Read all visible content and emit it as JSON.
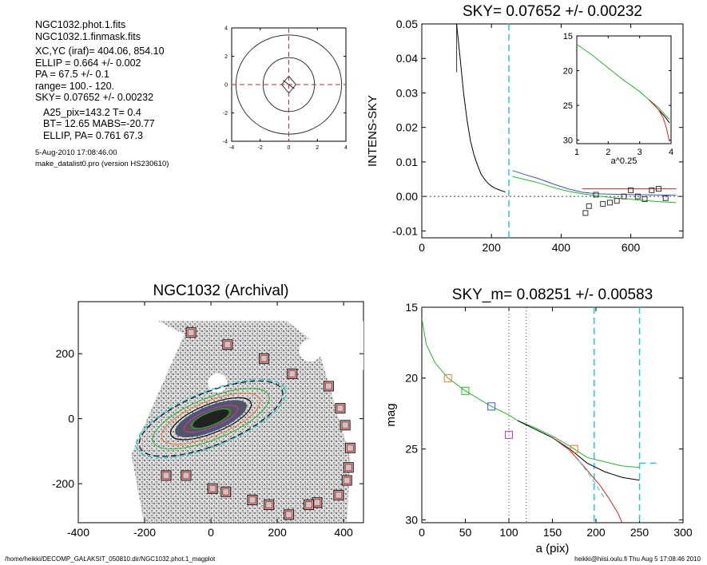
{
  "info": {
    "lines_a": [
      "NGC1032.phot.1.fits",
      "NGC1032.1.finmask.fits"
    ],
    "lines_b": [
      "XC,YC (iraf)=   404.06, 854.10",
      "ELLIP = 0.664 +/- 0.002",
      "PA    =  67.5 +/-   0.1",
      "range=  100.-  120.",
      "SKY= 0.07652 +/- 0.00232"
    ],
    "lines_c": [
      "A25_pix=143.2   T= 0.4",
      "BT=  12.65   MABS=-20.77",
      "ELLIP, PA= 0.761   67.3"
    ],
    "lines_d": [
      "5-Aug-2010 17:08:46.00",
      "make_datalist0.pro (version HS230610)"
    ]
  },
  "footer": {
    "left": "/home/heikki/DECOMP_GALAKSIT_050810.dir/NGC1032.phot.1_magplot",
    "right": "heikki@hiisi.oulu.fi  Thu Aug  5 17:08:46 2010"
  },
  "colors": {
    "cyan": "#22ccdd",
    "red": "#dd2222",
    "green": "#22bb22",
    "blue": "#3355dd",
    "magenta": "#cc33cc",
    "orange": "#ee7733"
  },
  "chart_data": [
    {
      "id": "contour",
      "type": "contour",
      "xlim": [
        -4,
        4
      ],
      "ylim": [
        -4,
        4
      ],
      "xticks": [
        "-4",
        "-2",
        "0",
        "2",
        "4"
      ],
      "yticks": [
        "-4",
        "-2",
        "0",
        "2",
        "4"
      ]
    },
    {
      "id": "sky_profile",
      "type": "line",
      "title": "SKY= 0.07652 +/- 0.00232",
      "ylabel": "INTENS-SKY",
      "xlim": [
        0,
        750
      ],
      "ylim": [
        -0.012,
        0.05
      ],
      "xticks": [
        "0",
        "200",
        "400",
        "600"
      ],
      "yticks": [
        "-0.01",
        "0.00",
        "0.01",
        "0.02",
        "0.03",
        "0.04",
        "0.05"
      ],
      "series": [
        {
          "color": "black",
          "x": [
            100,
            110,
            120,
            130,
            140,
            150,
            160,
            170,
            180,
            190,
            200,
            210,
            220,
            230,
            240
          ],
          "y": [
            0.05,
            0.04,
            0.03,
            0.022,
            0.016,
            0.012,
            0.009,
            0.0065,
            0.005,
            0.0038,
            0.003,
            0.0024,
            0.002,
            0.0016,
            0.0013
          ]
        },
        {
          "color": "blue",
          "x": [
            260,
            300,
            340,
            380,
            420,
            460,
            500,
            560,
            620,
            680,
            730
          ],
          "y": [
            0.0075,
            0.0062,
            0.005,
            0.0035,
            0.0022,
            0.0012,
            0.0008,
            0.0006,
            0.0005,
            0.0004,
            0.0004
          ]
        },
        {
          "color": "green",
          "x": [
            260,
            300,
            340,
            380,
            420,
            460,
            500,
            560,
            620,
            680,
            730
          ],
          "y": [
            0.0058,
            0.0048,
            0.0038,
            0.0025,
            0.0015,
            0.0008,
            0.0002,
            -0.0005,
            -0.001,
            -0.0015,
            -0.0018
          ]
        },
        {
          "color": "red",
          "x": [
            460,
            520,
            600,
            680,
            730
          ],
          "y": [
            0.0022,
            0.0022,
            0.0022,
            0.0022,
            0.0022
          ]
        }
      ],
      "squares": {
        "x": [
          470,
          480,
          500,
          520,
          540,
          560,
          580,
          600,
          620,
          640,
          660,
          680,
          700
        ],
        "y": [
          -0.0048,
          -0.0028,
          0.0005,
          -0.0022,
          -0.0018,
          -0.0013,
          0.0,
          0.0018,
          0.0,
          -0.0008,
          0.0018,
          0.0022,
          -0.0005
        ]
      },
      "vline_x": 250
    },
    {
      "id": "inset",
      "type": "line",
      "xlabel": "a^0.25",
      "xlim": [
        1,
        4
      ],
      "ylim": [
        15,
        30.5
      ],
      "xticks": [
        "1",
        "2",
        "3",
        "4"
      ],
      "yticks": [
        "15",
        "20",
        "25",
        "30"
      ],
      "series": [
        {
          "color": "green",
          "x": [
            1.0,
            1.5,
            2.0,
            2.5,
            3.0,
            3.3,
            3.6,
            3.8,
            3.95
          ],
          "y": [
            16.2,
            17.8,
            19.6,
            21.4,
            23.0,
            24.2,
            25.3,
            26.3,
            27.0
          ]
        },
        {
          "color": "black",
          "x": [
            3.3,
            3.6,
            3.8,
            3.95
          ],
          "y": [
            24.2,
            25.6,
            26.6,
            27.5
          ]
        },
        {
          "color": "red",
          "x": [
            3.3,
            3.6,
            3.75,
            3.85,
            3.95
          ],
          "y": [
            24.2,
            25.6,
            26.8,
            28.2,
            30.2
          ]
        }
      ]
    },
    {
      "id": "image",
      "type": "scatter",
      "title": "NGC1032 (Archival)",
      "xlim": [
        -400,
        460
      ],
      "ylim": [
        -320,
        360
      ],
      "xticks": [
        "-400",
        "-200",
        "0",
        "200",
        "400"
      ],
      "yticks": [
        "-200",
        "0",
        "200"
      ],
      "marked_points": {
        "x": [
          -60,
          50,
          160,
          245,
          355,
          390,
          405,
          420,
          415,
          410,
          385,
          320,
          295,
          235,
          175,
          125,
          45,
          5,
          -75,
          -135
        ],
        "y": [
          265,
          228,
          185,
          138,
          100,
          32,
          -20,
          -90,
          -150,
          -190,
          -235,
          -258,
          -265,
          -295,
          -265,
          -250,
          -225,
          -215,
          -175,
          -175
        ]
      }
    },
    {
      "id": "mag_profile",
      "type": "line",
      "title": "SKY_m=  0.08251 +/- 0.00583",
      "xlabel": "a (pix)",
      "ylabel": "mag",
      "xlim": [
        0,
        300
      ],
      "ylim": [
        15,
        30.2
      ],
      "xticks": [
        "0",
        "50",
        "100",
        "150",
        "200",
        "250",
        "300"
      ],
      "yticks": [
        "15",
        "20",
        "25",
        "30"
      ],
      "series": [
        {
          "color": "green",
          "x": [
            0,
            5,
            15,
            30,
            50,
            80,
            100,
            110,
            130,
            150,
            170,
            190,
            210,
            230,
            250
          ],
          "y": [
            15.8,
            17.6,
            18.9,
            20.0,
            20.9,
            22.0,
            22.6,
            23.0,
            23.5,
            24.1,
            24.8,
            25.6,
            25.9,
            26.2,
            26.3
          ]
        },
        {
          "color": "black",
          "x": [
            110,
            130,
            150,
            170,
            190,
            210,
            230,
            250
          ],
          "y": [
            23.0,
            23.6,
            24.2,
            25.0,
            26.0,
            26.6,
            27.0,
            27.2
          ]
        },
        {
          "color": "red",
          "x": [
            150,
            170,
            190,
            205,
            215,
            225,
            230
          ],
          "y": [
            24.2,
            25.1,
            26.5,
            27.6,
            28.5,
            29.5,
            30.2
          ]
        },
        {
          "color": "cyan",
          "x": [
            180,
            190,
            200,
            210
          ],
          "y": [
            25.8,
            26.6,
            27.5,
            28.5
          ]
        }
      ],
      "squares": {
        "x": [
          30,
          50,
          80,
          100,
          175
        ],
        "y": [
          20.0,
          20.9,
          22.0,
          24.0,
          25.0
        ],
        "colors": [
          "orange",
          "green",
          "blue",
          "magenta",
          "orange"
        ]
      },
      "vlines_dotted": [
        100,
        120
      ],
      "vlines_dashed": [
        198,
        250
      ],
      "hline_dashed": {
        "x": [
          250,
          272
        ],
        "y": 26.0
      }
    }
  ]
}
